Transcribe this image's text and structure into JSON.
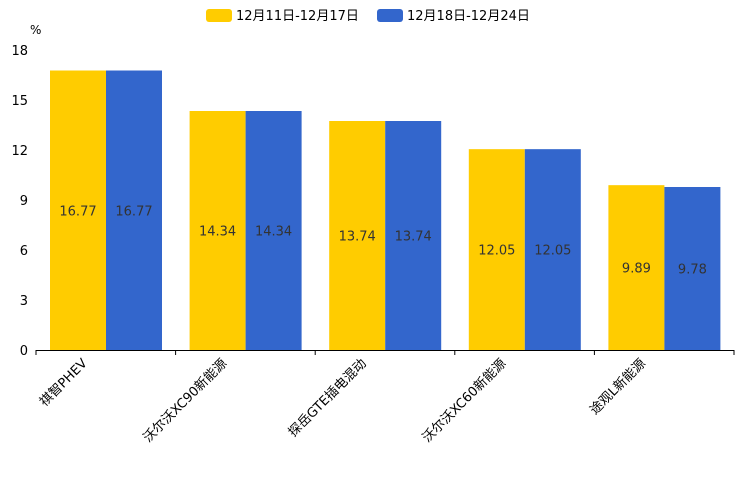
{
  "chart_data": {
    "type": "bar",
    "unit": "%",
    "categories": [
      "祺智PHEV",
      "沃尔沃XC90新能源",
      "探岳GTE插电混动",
      "沃尔沃XC60新能源",
      "途观L新能源"
    ],
    "series": [
      {
        "name": "12月11日-12月17日",
        "color": "#FFCC00",
        "values": [
          16.77,
          14.34,
          13.74,
          12.05,
          9.89
        ]
      },
      {
        "name": "12月18日-12月24日",
        "color": "#3366CC",
        "values": [
          16.77,
          14.34,
          13.74,
          12.05,
          9.78
        ]
      }
    ],
    "ylim": [
      0,
      18
    ],
    "yticks": [
      0,
      3,
      6,
      9,
      12,
      15,
      18
    ],
    "grid": false,
    "legend": "top-center"
  }
}
